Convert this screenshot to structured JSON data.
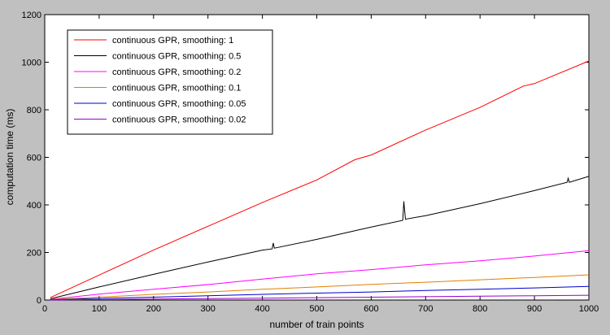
{
  "chart_data": {
    "type": "line",
    "xlabel": "number of train points",
    "ylabel": "computation time (ms)",
    "xlim": [
      0,
      1000
    ],
    "ylim": [
      0,
      1200
    ],
    "xticks": [
      0,
      100,
      200,
      300,
      400,
      500,
      600,
      700,
      800,
      900,
      1000
    ],
    "yticks": [
      0,
      200,
      400,
      600,
      800,
      1000,
      1200
    ],
    "grid": false,
    "legend_position": "top-left",
    "series": [
      {
        "name": "continuous GPR, smoothing: 1",
        "color": "#ff0000",
        "x": [
          10,
          100,
          200,
          300,
          400,
          500,
          570,
          600,
          700,
          800,
          880,
          900,
          1000
        ],
        "y": [
          10,
          105,
          210,
          310,
          410,
          505,
          590,
          610,
          715,
          810,
          900,
          910,
          1005
        ]
      },
      {
        "name": "continuous GPR, smoothing: 0.5",
        "color": "#000000",
        "x": [
          10,
          100,
          200,
          300,
          400,
          418,
          420,
          422,
          500,
          600,
          658,
          660,
          663,
          700,
          800,
          900,
          960,
          962,
          964,
          1000
        ],
        "y": [
          5,
          55,
          108,
          160,
          210,
          215,
          240,
          218,
          255,
          307,
          335,
          415,
          340,
          355,
          405,
          460,
          495,
          512,
          495,
          520
        ]
      },
      {
        "name": "continuous GPR, smoothing: 0.2",
        "color": "#ff00ff",
        "x": [
          10,
          100,
          200,
          300,
          400,
          500,
          600,
          700,
          800,
          900,
          1000
        ],
        "y": [
          3,
          25,
          45,
          65,
          88,
          110,
          128,
          148,
          165,
          185,
          208
        ]
      },
      {
        "name": "continuous GPR, smoothing: 0.1",
        "color": "#e08000",
        "x": [
          10,
          100,
          200,
          300,
          400,
          500,
          600,
          700,
          800,
          900,
          1000
        ],
        "y": [
          2,
          12,
          24,
          34,
          45,
          55,
          66,
          75,
          85,
          95,
          106
        ]
      },
      {
        "name": "continuous GPR, smoothing: 0.05",
        "color": "#0000cc",
        "x": [
          10,
          100,
          200,
          300,
          400,
          500,
          600,
          700,
          800,
          900,
          1000
        ],
        "y": [
          1,
          7,
          12,
          18,
          24,
          29,
          34,
          40,
          45,
          51,
          57
        ]
      },
      {
        "name": "continuous GPR, smoothing: 0.02",
        "color": "#9900cc",
        "x": [
          10,
          100,
          200,
          300,
          400,
          500,
          600,
          700,
          800,
          900,
          1000
        ],
        "y": [
          0.5,
          2,
          4,
          6,
          8,
          10,
          12,
          14,
          16,
          18,
          20
        ]
      }
    ]
  }
}
